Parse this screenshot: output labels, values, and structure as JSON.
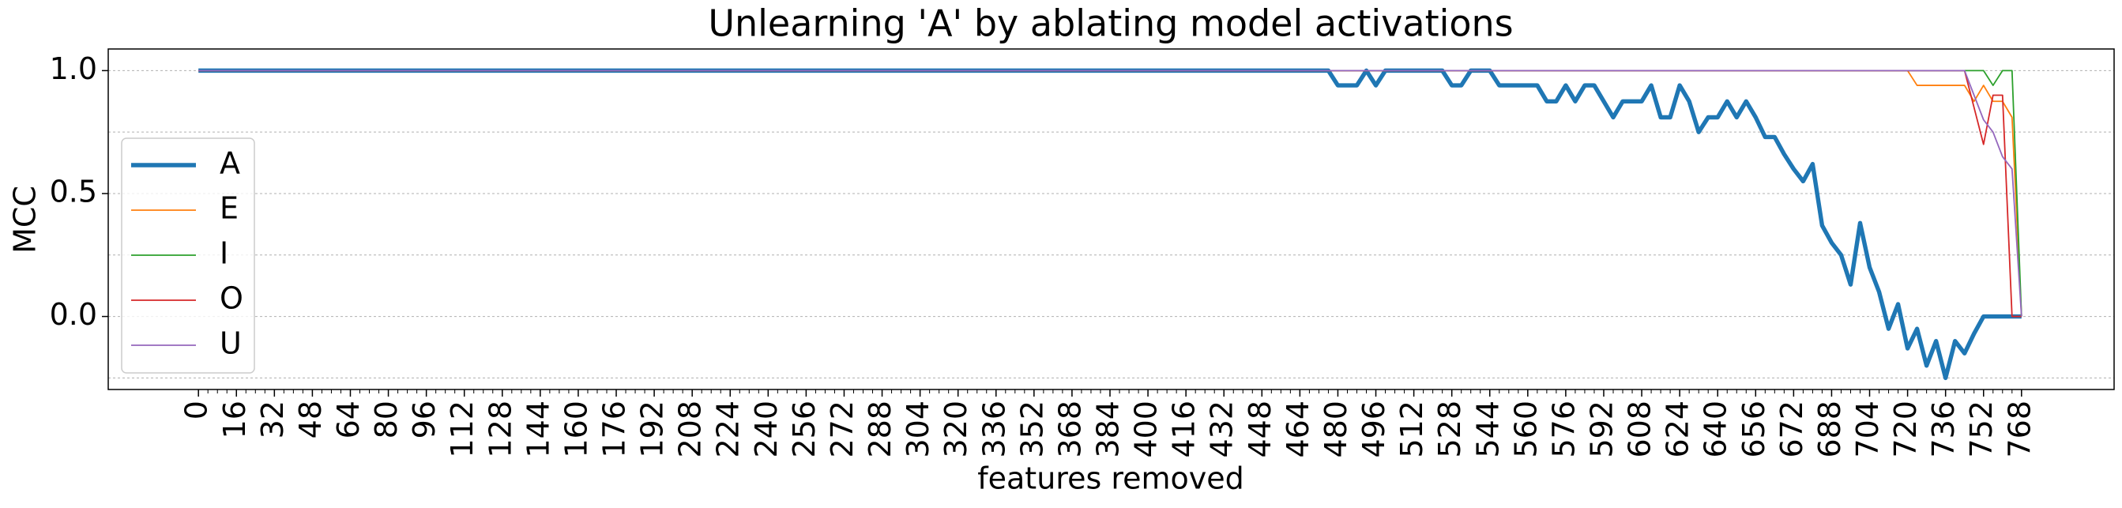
{
  "chart_data": {
    "type": "line",
    "title": "Unlearning 'A' by ablating model activations",
    "xlabel": "features removed",
    "ylabel": "MCC",
    "x": [
      0,
      476,
      480,
      484,
      488,
      492,
      496,
      500,
      504,
      508,
      512,
      516,
      520,
      524,
      528,
      532,
      536,
      540,
      544,
      548,
      552,
      556,
      560,
      564,
      568,
      572,
      576,
      580,
      584,
      588,
      592,
      596,
      600,
      604,
      608,
      612,
      616,
      620,
      624,
      628,
      632,
      636,
      640,
      644,
      648,
      652,
      656,
      660,
      664,
      668,
      672,
      676,
      680,
      684,
      688,
      692,
      696,
      700,
      704,
      708,
      712,
      716,
      720,
      724,
      728,
      732,
      736,
      740,
      744,
      748,
      752,
      756,
      760,
      764,
      768
    ],
    "series": [
      {
        "name": "A",
        "color": "#1f77b4",
        "width": 3,
        "values": [
          1,
          1,
          0.94,
          0.94,
          0.94,
          1,
          0.94,
          1,
          1,
          1,
          1,
          1,
          1,
          1,
          0.94,
          0.94,
          1,
          1,
          1,
          0.94,
          0.94,
          0.94,
          0.94,
          0.94,
          0.875,
          0.875,
          0.94,
          0.875,
          0.94,
          0.94,
          0.875,
          0.81,
          0.875,
          0.875,
          0.875,
          0.94,
          0.81,
          0.81,
          0.94,
          0.875,
          0.75,
          0.81,
          0.81,
          0.875,
          0.81,
          0.875,
          0.81,
          0.73,
          0.73,
          0.66,
          0.6,
          0.55,
          0.62,
          0.37,
          0.3,
          0.25,
          0.13,
          0.38,
          0.2,
          0.1,
          -0.05,
          0.05,
          -0.13,
          -0.05,
          -0.2,
          -0.1,
          -0.25,
          -0.1,
          -0.15,
          -0.07,
          0,
          0,
          0,
          0,
          0
        ]
      },
      {
        "name": "E",
        "color": "#ff7f0e",
        "width": 1,
        "values": [
          1,
          1,
          1,
          1,
          1,
          1,
          1,
          1,
          1,
          1,
          1,
          1,
          1,
          1,
          1,
          1,
          1,
          1,
          1,
          1,
          1,
          1,
          1,
          1,
          1,
          1,
          1,
          1,
          1,
          1,
          1,
          1,
          1,
          1,
          1,
          1,
          1,
          1,
          1,
          1,
          1,
          1,
          1,
          1,
          1,
          1,
          1,
          1,
          1,
          1,
          1,
          1,
          1,
          1,
          1,
          1,
          1,
          1,
          1,
          1,
          1,
          1,
          1,
          0.94,
          0.94,
          0.94,
          0.94,
          0.94,
          0.94,
          0.875,
          0.94,
          0.875,
          0.875,
          0.81,
          0
        ]
      },
      {
        "name": "I",
        "color": "#2ca02c",
        "width": 1,
        "values": [
          1,
          1,
          1,
          1,
          1,
          1,
          1,
          1,
          1,
          1,
          1,
          1,
          1,
          1,
          1,
          1,
          1,
          1,
          1,
          1,
          1,
          1,
          1,
          1,
          1,
          1,
          1,
          1,
          1,
          1,
          1,
          1,
          1,
          1,
          1,
          1,
          1,
          1,
          1,
          1,
          1,
          1,
          1,
          1,
          1,
          1,
          1,
          1,
          1,
          1,
          1,
          1,
          1,
          1,
          1,
          1,
          1,
          1,
          1,
          1,
          1,
          1,
          1,
          1,
          1,
          1,
          1,
          1,
          1,
          1,
          1,
          0.94,
          1,
          1,
          0
        ]
      },
      {
        "name": "O",
        "color": "#d62728",
        "width": 1,
        "values": [
          1,
          1,
          1,
          1,
          1,
          1,
          1,
          1,
          1,
          1,
          1,
          1,
          1,
          1,
          1,
          1,
          1,
          1,
          1,
          1,
          1,
          1,
          1,
          1,
          1,
          1,
          1,
          1,
          1,
          1,
          1,
          1,
          1,
          1,
          1,
          1,
          1,
          1,
          1,
          1,
          1,
          1,
          1,
          1,
          1,
          1,
          1,
          1,
          1,
          1,
          1,
          1,
          1,
          1,
          1,
          1,
          1,
          1,
          1,
          1,
          1,
          1,
          1,
          1,
          1,
          1,
          1,
          1,
          1,
          0.85,
          0.7,
          0.9,
          0.9,
          0,
          0
        ]
      },
      {
        "name": "U",
        "color": "#9467bd",
        "width": 1,
        "values": [
          1,
          1,
          1,
          1,
          1,
          1,
          1,
          1,
          1,
          1,
          1,
          1,
          1,
          1,
          1,
          1,
          1,
          1,
          1,
          1,
          1,
          1,
          1,
          1,
          1,
          1,
          1,
          1,
          1,
          1,
          1,
          1,
          1,
          1,
          1,
          1,
          1,
          1,
          1,
          1,
          1,
          1,
          1,
          1,
          1,
          1,
          1,
          1,
          1,
          1,
          1,
          1,
          1,
          1,
          1,
          1,
          1,
          1,
          1,
          1,
          1,
          1,
          1,
          1,
          1,
          1,
          1,
          1,
          1,
          0.9,
          0.8,
          0.75,
          0.65,
          0.6,
          0
        ]
      }
    ],
    "xlim": [
      -38,
      807
    ],
    "ylim": [
      -0.297,
      1.088
    ],
    "xticks": [
      0,
      16,
      32,
      48,
      64,
      80,
      96,
      112,
      128,
      144,
      160,
      176,
      192,
      208,
      224,
      240,
      256,
      272,
      288,
      304,
      320,
      336,
      352,
      368,
      384,
      400,
      416,
      432,
      448,
      464,
      480,
      496,
      512,
      528,
      544,
      560,
      576,
      592,
      608,
      624,
      640,
      656,
      672,
      688,
      704,
      720,
      736,
      752,
      768
    ],
    "x_minor_step": 4,
    "yticks": [
      {
        "value": 0,
        "label": "0.0"
      },
      0.5,
      {
        "value": 1,
        "label": "1.0"
      }
    ],
    "y_minor_grid": [
      -0.25,
      0.25,
      0.75
    ],
    "grid": true,
    "legend": "center left"
  }
}
